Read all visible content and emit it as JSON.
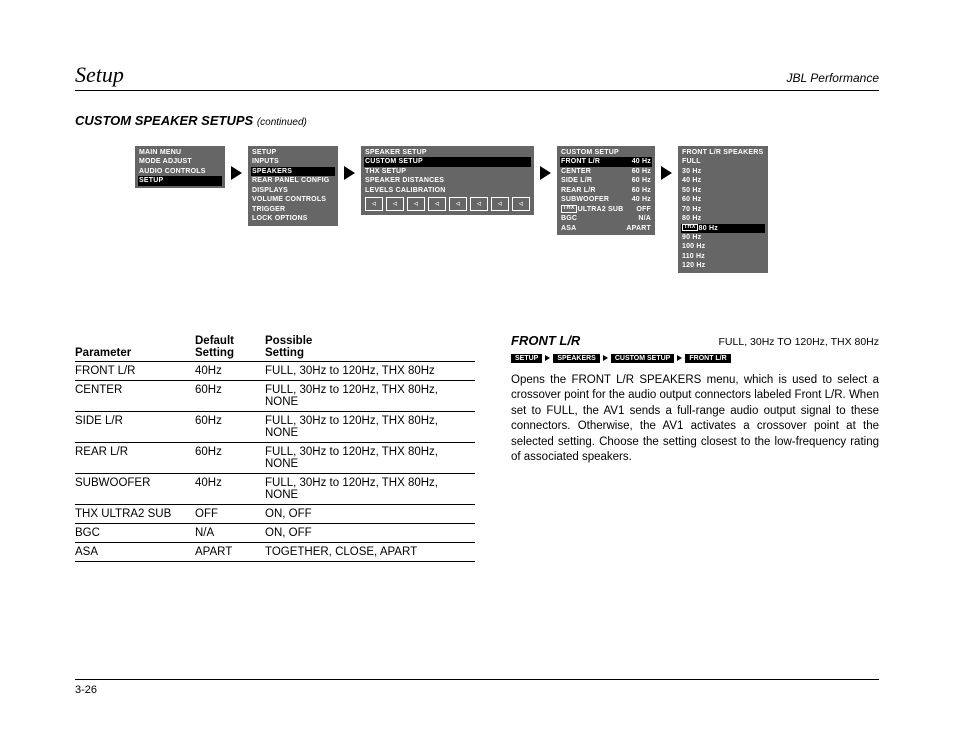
{
  "header": {
    "left": "Setup",
    "right": "JBL Performance"
  },
  "section": {
    "title": "CUSTOM SPEAKER SETUPS",
    "cont": "(continued)"
  },
  "menus": [
    {
      "title": null,
      "rows": [
        {
          "t": "MAIN MENU",
          "sel": false
        },
        {
          "t": "MODE ADJUST",
          "sel": false
        },
        {
          "t": "AUDIO CONTROLS",
          "sel": false
        },
        {
          "t": "SETUP",
          "sel": true
        }
      ]
    },
    {
      "title": null,
      "rows": [
        {
          "t": "SETUP",
          "sel": false
        },
        {
          "t": "INPUTS",
          "sel": false
        },
        {
          "t": "SPEAKERS",
          "sel": true
        },
        {
          "t": "REAR PANEL CONFIG",
          "sel": false
        },
        {
          "t": "DISPLAYS",
          "sel": false
        },
        {
          "t": "VOLUME CONTROLS",
          "sel": false
        },
        {
          "t": "TRIGGER",
          "sel": false
        },
        {
          "t": "LOCK OPTIONS",
          "sel": false
        }
      ]
    },
    {
      "title": null,
      "speaker_setup": true,
      "rows": [
        {
          "t": "SPEAKER SETUP",
          "sel": false
        },
        {
          "t": "CUSTOM SETUP",
          "sel": true
        },
        {
          "t": "THX SETUP",
          "sel": false
        },
        {
          "t": "SPEAKER DISTANCES",
          "sel": false
        },
        {
          "t": "LEVELS CALIBRATION",
          "sel": false
        }
      ]
    },
    {
      "title": null,
      "two_col": true,
      "rows": [
        {
          "l": "CUSTOM SETUP",
          "r": "",
          "sel": false
        },
        {
          "l": "FRONT L/R",
          "r": "40 Hz",
          "sel": true
        },
        {
          "l": "CENTER",
          "r": "60 Hz",
          "sel": false
        },
        {
          "l": "SIDE L/R",
          "r": "60 Hz",
          "sel": false
        },
        {
          "l": "REAR L/R",
          "r": "60 Hz",
          "sel": false
        },
        {
          "l": "SUBWOOFER",
          "r": "40 Hz",
          "sel": false
        },
        {
          "l": "ULTRA2 SUB",
          "r": "OFF",
          "sel": false,
          "thx": true
        },
        {
          "l": "BGC",
          "r": "N/A",
          "sel": false
        },
        {
          "l": "ASA",
          "r": "APART",
          "sel": false
        }
      ]
    },
    {
      "title": null,
      "rows": [
        {
          "t": "FRONT L/R SPEAKERS",
          "sel": false
        },
        {
          "t": "FULL",
          "sel": false
        },
        {
          "t": "30 Hz",
          "sel": false
        },
        {
          "t": "40 Hz",
          "sel": false
        },
        {
          "t": "50 Hz",
          "sel": false
        },
        {
          "t": "60 Hz",
          "sel": false
        },
        {
          "t": "70 Hz",
          "sel": false
        },
        {
          "t": "80 Hz",
          "sel": false
        },
        {
          "t": "80 Hz",
          "sel": true,
          "thx": true
        },
        {
          "t": "90 Hz",
          "sel": false
        },
        {
          "t": "100 Hz",
          "sel": false
        },
        {
          "t": "110 Hz",
          "sel": false
        },
        {
          "t": "120 Hz",
          "sel": false
        }
      ]
    }
  ],
  "table": {
    "headers": [
      "Parameter",
      "Default\nSetting",
      "Possible\nSetting"
    ],
    "rows": [
      [
        "FRONT L/R",
        "40Hz",
        "FULL, 30Hz to 120Hz, THX 80Hz"
      ],
      [
        "CENTER",
        "60Hz",
        "FULL, 30Hz to 120Hz, THX 80Hz, NONE"
      ],
      [
        "SIDE L/R",
        "60Hz",
        "FULL, 30Hz to 120Hz, THX 80Hz, NONE"
      ],
      [
        "REAR L/R",
        "60Hz",
        "FULL, 30Hz to 120Hz, THX 80Hz, NONE"
      ],
      [
        "SUBWOOFER",
        "40Hz",
        "FULL, 30Hz to 120Hz, THX 80Hz, NONE"
      ],
      [
        "THX ULTRA2 SUB",
        "OFF",
        "ON, OFF"
      ],
      [
        "BGC",
        "N/A",
        "ON, OFF"
      ],
      [
        "ASA",
        "APART",
        "TOGETHER, CLOSE, APART"
      ]
    ]
  },
  "right": {
    "title": "FRONT L/R",
    "value": "FULL, 30Hz TO 120Hz, THX 80Hz",
    "crumbs": [
      "SETUP",
      "SPEAKERS",
      "CUSTOM SETUP",
      "FRONT L/R"
    ],
    "body": "Opens the FRONT L/R SPEAKERS menu, which is used to select a crossover point for the audio output connectors labeled Front L/R. When set to FULL, the AV1 sends a full-range audio output signal to these connectors. Otherwise, the AV1 activates a crossover point at the selected setting. Choose the setting closest to the low-frequency rating of associated speakers."
  },
  "footer": "3-26",
  "colors": {
    "menu_bg": "#666666",
    "menu_sel": "#000000"
  }
}
